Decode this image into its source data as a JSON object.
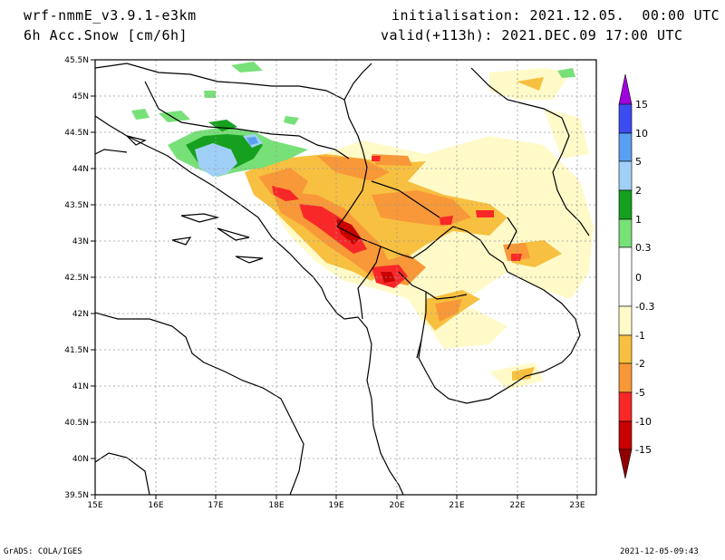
{
  "header": {
    "model": "wrf-nmmE_v3.9.1-e3km",
    "variable": "6h Acc.Snow [cm/6h]",
    "init": "initialisation: 2021.12.05.  00:00 UTC",
    "valid": "valid(+113h): 2021.DEC.09 17:00 UTC"
  },
  "map": {
    "lon_range": [
      15,
      23.3
    ],
    "lat_range": [
      39.5,
      45.5
    ],
    "lon_ticks": [
      "15E",
      "16E",
      "17E",
      "18E",
      "19E",
      "20E",
      "21E",
      "22E",
      "23E"
    ],
    "lat_ticks": [
      "45.5N",
      "45N",
      "44.5N",
      "44N",
      "43.5N",
      "43N",
      "42.5N",
      "42N",
      "41.5N",
      "41N",
      "40.5N",
      "40N",
      "39.5N"
    ],
    "grid": true
  },
  "colorbar": {
    "labels": [
      "15",
      "10",
      "5",
      "2",
      "1",
      "0.3",
      "0",
      "-0.3",
      "-1",
      "-2",
      "-5",
      "-10",
      "-15"
    ],
    "colors": [
      "#a000e0",
      "#3c4cf0",
      "#5aa0f0",
      "#a0d0f8",
      "#16a020",
      "#78e078",
      "#ffffff",
      "#fffac8",
      "#f8c040",
      "#f89838",
      "#f82828",
      "#c80000",
      "#900000"
    ]
  },
  "footer": {
    "left": "GrADS: COLA/IGES",
    "right": "2021-12-05-09:43"
  }
}
